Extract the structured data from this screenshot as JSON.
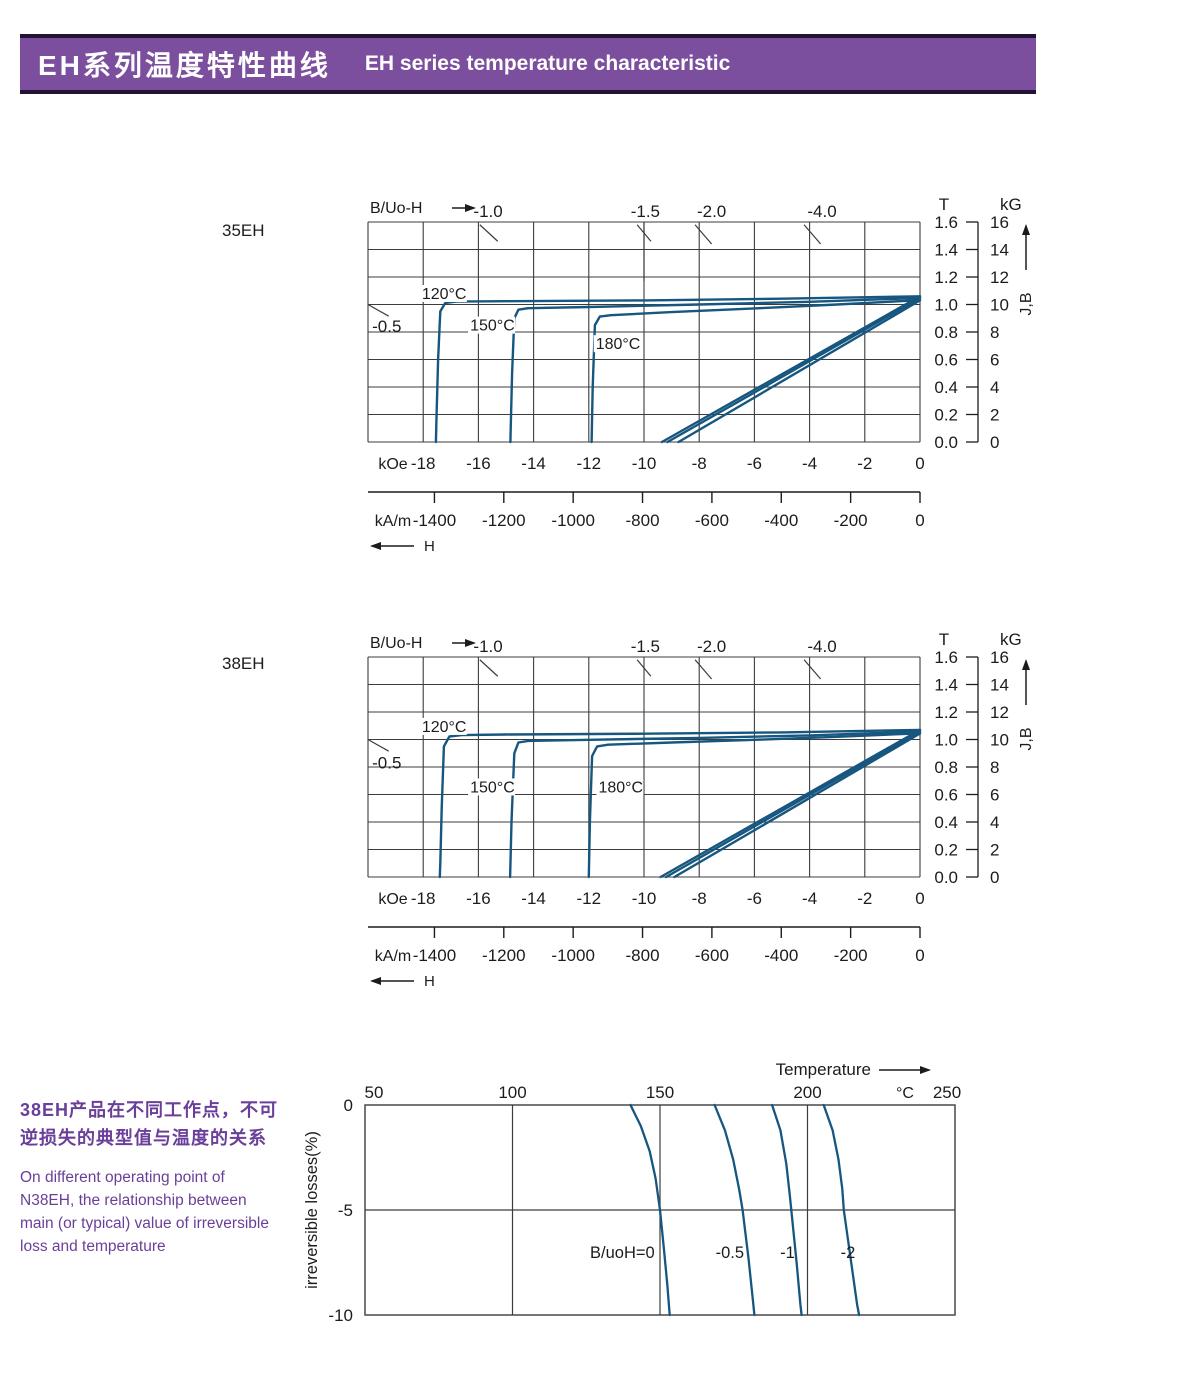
{
  "header": {
    "title_zh": "EH系列温度特性曲线",
    "title_en": "EH  series temperature characteristic"
  },
  "colors": {
    "banner": "#7b4f9e",
    "banner_edge": "#241433",
    "curve": "#16567f",
    "grid": "#3c3c3c",
    "text": "#1c1c1c",
    "purple_text": "#6a3f99"
  },
  "note": {
    "zh_line1": "38EH产品在不同工作点，不可",
    "zh_line2": "逆损失的典型值与温度的关系",
    "en_lines": [
      "On different operating point of",
      "N38EH,  the relationship between",
      "main (or typical) value of irreversible",
      "loss and temperature"
    ]
  },
  "chart_data": [
    {
      "type": "line",
      "name": "35EH demagnetization curves (J-H and B-H at 120/150/180 °C)",
      "grade_label": "35EH",
      "corner_label": "B/Uo-H",
      "h_axis_arrow_label": "H",
      "jb_axis_arrow_label": "J,B",
      "x_primary": {
        "unit": "kOe",
        "range": [
          -20,
          0
        ],
        "tick_step": 2,
        "labeled_ticks": [
          -18,
          -16,
          -14,
          -12,
          -10,
          -8,
          -6,
          -4,
          -2,
          0
        ]
      },
      "x_secondary": {
        "unit": "kA/m",
        "labeled_ticks": [
          -1400,
          -1200,
          -1000,
          -800,
          -600,
          -400,
          -200,
          0
        ]
      },
      "y_axis": {
        "unit_left": "T",
        "unit_right": "kG",
        "range": [
          0,
          1.6
        ],
        "tick_step": 0.2,
        "ticks_T": [
          "1.6",
          "1.4",
          "1.2",
          "1.0",
          "0.8",
          "0.6",
          "0.4",
          "0.2",
          "0.0"
        ],
        "ticks_kG": [
          16,
          14,
          12,
          10,
          8,
          6,
          4,
          2,
          0
        ]
      },
      "load_line_labels": [
        {
          "text": "-1.0",
          "H": -15.65
        },
        {
          "text": "-1.5",
          "H": -9.95
        },
        {
          "text": "-2.0",
          "H": -7.55
        },
        {
          "text": "-4.0",
          "H": -3.55
        }
      ],
      "edge_load_label": {
        "text": "-0.5",
        "H": -19.85,
        "B": 0.8
      },
      "temp_curve_labels": [
        {
          "text": "120°C",
          "H": -18.05,
          "B": 1.04
        },
        {
          "text": "150°C",
          "H": -16.3,
          "B": 0.81
        },
        {
          "text": "180°C",
          "H": -11.75,
          "B": 0.675
        }
      ],
      "tick_strokes": [
        [
          [
            -15.95,
            1.58
          ],
          [
            -15.3,
            1.46
          ]
        ],
        [
          [
            -10.25,
            1.58
          ],
          [
            -9.75,
            1.46
          ]
        ],
        [
          [
            -10,
            1.6
          ],
          [
            -10,
            1.17
          ]
        ],
        [
          [
            -8.15,
            1.58
          ],
          [
            -7.55,
            1.44
          ]
        ],
        [
          [
            -4.2,
            1.58
          ],
          [
            -3.6,
            1.44
          ]
        ],
        [
          [
            -20,
            1.0
          ],
          [
            -19.25,
            0.915
          ]
        ]
      ],
      "series": [
        {
          "name": "J-120C",
          "points": [
            [
              0,
              1.06
            ],
            [
              -5,
              1.042
            ],
            [
              -10,
              1.03
            ],
            [
              -15,
              1.024
            ],
            [
              -16.8,
              1.021
            ],
            [
              -17.2,
              1.012
            ],
            [
              -17.38,
              0.95
            ],
            [
              -17.46,
              0.6
            ],
            [
              -17.52,
              0.15
            ],
            [
              -17.54,
              0
            ]
          ]
        },
        {
          "name": "J-150C",
          "points": [
            [
              0,
              1.048
            ],
            [
              -4,
              1.02
            ],
            [
              -8,
              1.0
            ],
            [
              -12,
              0.982
            ],
            [
              -14.2,
              0.973
            ],
            [
              -14.55,
              0.962
            ],
            [
              -14.7,
              0.9
            ],
            [
              -14.78,
              0.5
            ],
            [
              -14.83,
              0.1
            ],
            [
              -14.84,
              0
            ]
          ]
        },
        {
          "name": "J-180C",
          "points": [
            [
              0,
              1.032
            ],
            [
              -3,
              1.0
            ],
            [
              -6,
              0.972
            ],
            [
              -9,
              0.945
            ],
            [
              -11.2,
              0.922
            ],
            [
              -11.6,
              0.912
            ],
            [
              -11.78,
              0.85
            ],
            [
              -11.86,
              0.4
            ],
            [
              -11.9,
              0
            ]
          ]
        },
        {
          "name": "B-120C",
          "points": [
            [
              0,
              1.06
            ],
            [
              -9.35,
              0
            ]
          ]
        },
        {
          "name": "B-150C",
          "points": [
            [
              0,
              1.046
            ],
            [
              -9.15,
              0
            ]
          ]
        },
        {
          "name": "B-180C",
          "points": [
            [
              0,
              1.03
            ],
            [
              -8.75,
              0
            ]
          ]
        }
      ]
    },
    {
      "type": "line",
      "name": "38EH demagnetization curves (J-H and B-H at 120/150/180 °C)",
      "grade_label": "38EH",
      "corner_label": "B/Uo-H",
      "h_axis_arrow_label": "H",
      "jb_axis_arrow_label": "J,B",
      "x_primary": {
        "unit": "kOe",
        "range": [
          -20,
          0
        ],
        "tick_step": 2,
        "labeled_ticks": [
          -18,
          -16,
          -14,
          -12,
          -10,
          -8,
          -6,
          -4,
          -2,
          0
        ]
      },
      "x_secondary": {
        "unit": "kA/m",
        "labeled_ticks": [
          -1400,
          -1200,
          -1000,
          -800,
          -600,
          -400,
          -200,
          0
        ]
      },
      "y_axis": {
        "unit_left": "T",
        "unit_right": "kG",
        "range": [
          0,
          1.6
        ],
        "tick_step": 0.2,
        "ticks_T": [
          "1.6",
          "1.4",
          "1.2",
          "1.0",
          "0.8",
          "0.6",
          "0.4",
          "0.2",
          "0.0"
        ],
        "ticks_kG": [
          16,
          14,
          12,
          10,
          8,
          6,
          4,
          2,
          0
        ]
      },
      "load_line_labels": [
        {
          "text": "-1.0",
          "H": -15.65
        },
        {
          "text": "-1.5",
          "H": -9.95
        },
        {
          "text": "-2.0",
          "H": -7.55
        },
        {
          "text": "-4.0",
          "H": -3.55
        }
      ],
      "edge_load_label": {
        "text": "-0.5",
        "H": -19.85,
        "B": 0.79
      },
      "temp_curve_labels": [
        {
          "text": "120°C",
          "H": -18.05,
          "B": 1.055
        },
        {
          "text": "150°C",
          "H": -16.3,
          "B": 0.615
        },
        {
          "text": "180°C",
          "H": -11.65,
          "B": 0.615
        }
      ],
      "tick_strokes": [
        [
          [
            -15.95,
            1.58
          ],
          [
            -15.3,
            1.46
          ]
        ],
        [
          [
            -10.25,
            1.58
          ],
          [
            -9.75,
            1.46
          ]
        ],
        [
          [
            -8.15,
            1.58
          ],
          [
            -7.55,
            1.44
          ]
        ],
        [
          [
            -4.2,
            1.58
          ],
          [
            -3.6,
            1.44
          ]
        ],
        [
          [
            -20,
            1.0
          ],
          [
            -19.25,
            0.915
          ]
        ]
      ],
      "series": [
        {
          "name": "J-120C",
          "points": [
            [
              0,
              1.07
            ],
            [
              -5,
              1.052
            ],
            [
              -10,
              1.042
            ],
            [
              -15,
              1.036
            ],
            [
              -16.6,
              1.032
            ],
            [
              -17.05,
              1.022
            ],
            [
              -17.25,
              0.95
            ],
            [
              -17.33,
              0.5
            ],
            [
              -17.38,
              0.1
            ],
            [
              -17.4,
              0
            ]
          ]
        },
        {
          "name": "J-150C",
          "points": [
            [
              0,
              1.058
            ],
            [
              -4,
              1.03
            ],
            [
              -8,
              1.012
            ],
            [
              -12,
              0.998
            ],
            [
              -14.2,
              0.99
            ],
            [
              -14.55,
              0.978
            ],
            [
              -14.7,
              0.9
            ],
            [
              -14.8,
              0.4
            ],
            [
              -14.85,
              0
            ]
          ]
        },
        {
          "name": "J-180C",
          "points": [
            [
              0,
              1.045
            ],
            [
              -3,
              1.02
            ],
            [
              -6,
              0.998
            ],
            [
              -9,
              0.978
            ],
            [
              -11.3,
              0.962
            ],
            [
              -11.7,
              0.95
            ],
            [
              -11.88,
              0.88
            ],
            [
              -11.96,
              0.4
            ],
            [
              -12.0,
              0
            ]
          ]
        },
        {
          "name": "B-120C",
          "points": [
            [
              0,
              1.07
            ],
            [
              -9.4,
              0
            ]
          ]
        },
        {
          "name": "B-150C",
          "points": [
            [
              0,
              1.057
            ],
            [
              -9.2,
              0
            ]
          ]
        },
        {
          "name": "B-180C",
          "points": [
            [
              0,
              1.044
            ],
            [
              -8.9,
              0
            ]
          ]
        }
      ]
    },
    {
      "type": "line",
      "name": "N38EH irreversible losses vs temperature at different operating points",
      "top_axis_label": "Temperature",
      "x_axis": {
        "unit": "°C",
        "range": [
          50,
          250
        ],
        "labeled_ticks": [
          50,
          100,
          150,
          200,
          250
        ],
        "gridlines": [
          100,
          150,
          200
        ]
      },
      "y_axis": {
        "label": "irreversible  losses(%)",
        "range": [
          -10,
          0
        ],
        "labeled_ticks": [
          0,
          -5,
          -10
        ],
        "gridlines": [
          -5
        ]
      },
      "series_label_loss": -7,
      "series": [
        {
          "name": "B/uoH=0",
          "label_end_T": 148.2,
          "points": [
            [
              140,
              0
            ],
            [
              143.5,
              -1
            ],
            [
              146.5,
              -2.2
            ],
            [
              148.5,
              -3.5
            ],
            [
              150,
              -5
            ],
            [
              151.3,
              -6.8
            ],
            [
              152.5,
              -8.6
            ],
            [
              153.3,
              -10
            ]
          ]
        },
        {
          "name": "-0.5",
          "label_end_T": 178.5,
          "points": [
            [
              168.5,
              0
            ],
            [
              172,
              -1.2
            ],
            [
              174.8,
              -2.6
            ],
            [
              176.8,
              -4
            ],
            [
              178,
              -5
            ],
            [
              180,
              -7.3
            ],
            [
              181.5,
              -9.3
            ],
            [
              182,
              -10
            ]
          ]
        },
        {
          "name": "-1",
          "label_end_T": 195.7,
          "points": [
            [
              188,
              0
            ],
            [
              190.8,
              -1.2
            ],
            [
              192.8,
              -2.8
            ],
            [
              194,
              -4.3
            ],
            [
              194.5,
              -5
            ],
            [
              196.3,
              -7.5
            ],
            [
              197.6,
              -9.5
            ],
            [
              198,
              -10
            ]
          ]
        },
        {
          "name": "-2",
          "label_end_T": 216.2,
          "points": [
            [
              205.5,
              0
            ],
            [
              208.5,
              -1.2
            ],
            [
              210.5,
              -2.6
            ],
            [
              211.8,
              -4
            ],
            [
              212.3,
              -5
            ],
            [
              214.8,
              -7.5
            ],
            [
              216.8,
              -9.5
            ],
            [
              217.5,
              -10
            ]
          ]
        }
      ]
    }
  ]
}
